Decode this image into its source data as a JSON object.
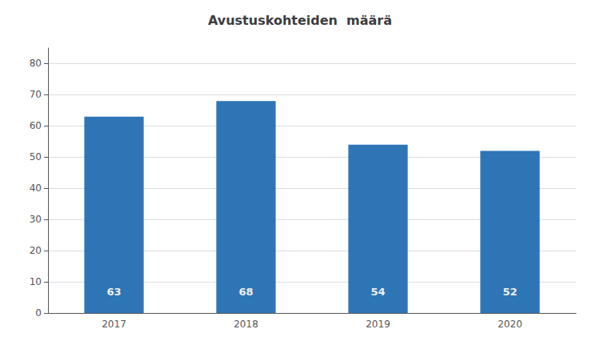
{
  "chart_data": {
    "type": "bar",
    "title": "Avustuskohteiden  määrä",
    "categories": [
      "2017",
      "2018",
      "2019",
      "2020"
    ],
    "values": [
      63,
      68,
      54,
      52
    ],
    "color": "#2E75B6",
    "ylim": [
      0,
      85
    ],
    "yticks": [
      0,
      10,
      20,
      30,
      40,
      50,
      60,
      70,
      80
    ],
    "grid": true,
    "data_labels": true
  }
}
